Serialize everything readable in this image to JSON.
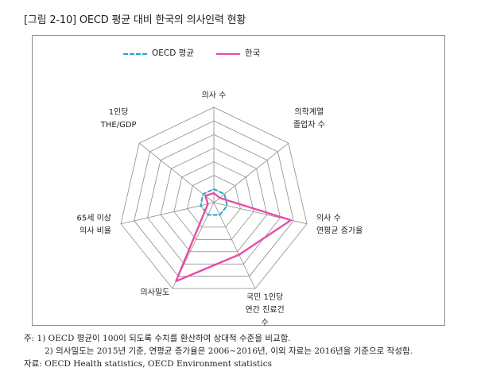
{
  "figure": {
    "title": "[그림 2-10] OECD 평균 대비 한국의 의사인력 현황"
  },
  "legend": {
    "oecd_label": "OECD 평균",
    "korea_label": "한국"
  },
  "colors": {
    "oecd": "#1aabcf",
    "korea": "#e94ca8",
    "grid": "#8c8c8c"
  },
  "chart_data": {
    "type": "radar",
    "axes": [
      {
        "label_lines": [
          "의사 수"
        ]
      },
      {
        "label_lines": [
          "의학계열",
          "졸업자 수"
        ]
      },
      {
        "label_lines": [
          "의사 수",
          "연평균 증가율"
        ]
      },
      {
        "label_lines": [
          "국민 1인당",
          "연간 진료건",
          "수"
        ]
      },
      {
        "label_lines": [
          "의사밀도"
        ]
      },
      {
        "label_lines": [
          "65세 이상",
          "의사 비율"
        ]
      },
      {
        "label_lines": [
          "1인당",
          "THE/GDP"
        ]
      }
    ],
    "range": [
      0,
      700
    ],
    "rings": 7,
    "series": [
      {
        "name": "OECD 평균",
        "values": [
          100,
          100,
          100,
          100,
          100,
          100,
          100
        ]
      },
      {
        "name": "한국",
        "values": [
          70,
          55,
          580,
          425,
          640,
          45,
          80
        ]
      }
    ]
  },
  "notes": {
    "line1": "주: 1) OECD 평균이 100이 되도록 수치를 환산하여 상대적 수준을 비교함.",
    "line2": "2) 의사밀도는 2015년 기준, 연평균 증가율은 2006~2016년, 이외 자료는  2016년을 기준으로 작성함.",
    "line3": "자료: OECD Health statistics, OECD Environment statistics"
  }
}
